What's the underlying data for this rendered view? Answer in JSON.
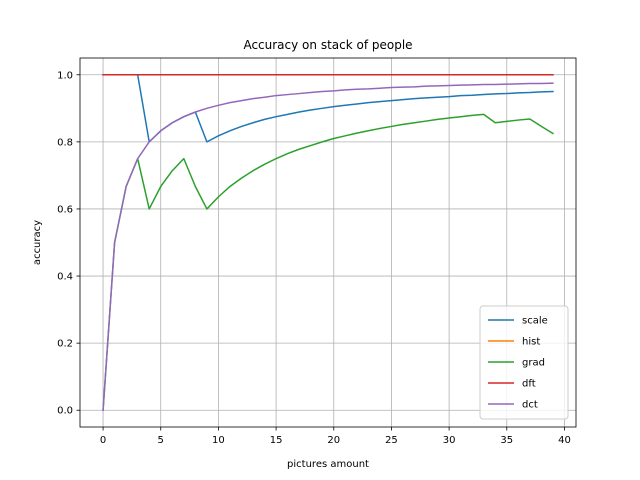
{
  "chart_data": {
    "type": "line",
    "title": "Accuracy on stack of people",
    "xlabel": "pictures amount",
    "ylabel": "accuracy",
    "xlim": [
      -2,
      41
    ],
    "ylim": [
      -0.05,
      1.05
    ],
    "xticks": [
      0,
      5,
      10,
      15,
      20,
      25,
      30,
      35,
      40
    ],
    "yticks": [
      0.0,
      0.2,
      0.4,
      0.6,
      0.8,
      1.0
    ],
    "xtick_labels": [
      "0",
      "5",
      "10",
      "15",
      "20",
      "25",
      "30",
      "35",
      "40"
    ],
    "ytick_labels": [
      "0.0",
      "0.2",
      "0.4",
      "0.6",
      "0.8",
      "1.0"
    ],
    "grid": true,
    "legend_position": "lower-right",
    "series": [
      {
        "name": "scale",
        "color": "#1f77b4",
        "x": [
          0,
          1,
          2,
          3,
          4,
          5,
          6,
          7,
          8,
          9,
          10,
          11,
          12,
          13,
          14,
          15,
          16,
          17,
          18,
          19,
          20,
          21,
          22,
          23,
          24,
          25,
          26,
          27,
          28,
          29,
          30,
          31,
          32,
          33,
          34,
          35,
          36,
          37,
          38,
          39
        ],
        "y": [
          1.0,
          1.0,
          1.0,
          1.0,
          0.8,
          0.833,
          0.857,
          0.875,
          0.889,
          0.8,
          0.818,
          0.833,
          0.846,
          0.857,
          0.867,
          0.875,
          0.882,
          0.889,
          0.895,
          0.9,
          0.905,
          0.909,
          0.913,
          0.917,
          0.92,
          0.923,
          0.926,
          0.929,
          0.931,
          0.933,
          0.935,
          0.938,
          0.939,
          0.941,
          0.943,
          0.944,
          0.946,
          0.947,
          0.949,
          0.95
        ]
      },
      {
        "name": "hist",
        "color": "#ff7f0e",
        "x": [
          0,
          39
        ],
        "y": [
          1.0,
          1.0
        ]
      },
      {
        "name": "grad",
        "color": "#2ca02c",
        "x": [
          0,
          1,
          2,
          3,
          4,
          5,
          6,
          7,
          8,
          9,
          10,
          11,
          12,
          13,
          14,
          15,
          16,
          17,
          18,
          19,
          20,
          21,
          22,
          23,
          24,
          25,
          26,
          27,
          28,
          29,
          30,
          31,
          32,
          33,
          34,
          35,
          36,
          37,
          38,
          39
        ],
        "y": [
          0.0,
          0.5,
          0.667,
          0.75,
          0.6,
          0.667,
          0.714,
          0.75,
          0.667,
          0.6,
          0.636,
          0.667,
          0.692,
          0.714,
          0.733,
          0.75,
          0.765,
          0.778,
          0.789,
          0.8,
          0.81,
          0.818,
          0.826,
          0.833,
          0.84,
          0.846,
          0.852,
          0.857,
          0.862,
          0.867,
          0.871,
          0.875,
          0.879,
          0.882,
          0.857,
          0.861,
          0.865,
          0.868,
          0.846,
          0.825
        ]
      },
      {
        "name": "dft",
        "color": "#d62728",
        "x": [
          0,
          39
        ],
        "y": [
          1.0,
          1.0
        ]
      },
      {
        "name": "dct",
        "color": "#9467bd",
        "x": [
          0,
          1,
          2,
          3,
          4,
          5,
          6,
          7,
          8,
          9,
          10,
          11,
          12,
          13,
          14,
          15,
          16,
          17,
          18,
          19,
          20,
          21,
          22,
          23,
          24,
          25,
          26,
          27,
          28,
          29,
          30,
          31,
          32,
          33,
          34,
          35,
          36,
          37,
          38,
          39
        ],
        "y": [
          0.0,
          0.5,
          0.667,
          0.75,
          0.8,
          0.833,
          0.857,
          0.875,
          0.889,
          0.9,
          0.909,
          0.917,
          0.923,
          0.929,
          0.933,
          0.938,
          0.941,
          0.944,
          0.947,
          0.95,
          0.952,
          0.955,
          0.957,
          0.958,
          0.96,
          0.962,
          0.963,
          0.964,
          0.966,
          0.967,
          0.968,
          0.969,
          0.97,
          0.971,
          0.971,
          0.972,
          0.973,
          0.974,
          0.974,
          0.975
        ]
      }
    ]
  }
}
